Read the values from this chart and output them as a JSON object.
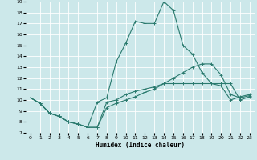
{
  "xlabel": "Humidex (Indice chaleur)",
  "xlim": [
    -0.5,
    23.5
  ],
  "ylim": [
    7,
    19
  ],
  "xticks": [
    0,
    1,
    2,
    3,
    4,
    5,
    6,
    7,
    8,
    9,
    10,
    11,
    12,
    13,
    14,
    15,
    16,
    17,
    18,
    19,
    20,
    21,
    22,
    23
  ],
  "yticks": [
    7,
    8,
    9,
    10,
    11,
    12,
    13,
    14,
    15,
    16,
    17,
    18,
    19
  ],
  "bg_color": "#cce8ea",
  "grid_color": "#ffffff",
  "line_color": "#2a7a6e",
  "curve1_x": [
    0,
    1,
    2,
    3,
    4,
    5,
    6,
    7,
    8,
    9,
    10,
    11,
    12,
    13,
    14,
    15,
    16,
    17,
    18,
    19,
    20,
    21,
    22,
    23
  ],
  "curve1_y": [
    10.2,
    9.7,
    8.8,
    8.5,
    8.0,
    7.8,
    7.5,
    7.5,
    9.8,
    10.0,
    10.5,
    10.8,
    11.0,
    11.2,
    11.5,
    11.5,
    11.5,
    11.5,
    11.5,
    11.5,
    11.3,
    10.0,
    10.3,
    10.5
  ],
  "curve2_x": [
    0,
    1,
    2,
    3,
    4,
    5,
    6,
    7,
    8,
    9,
    10,
    11,
    12,
    13,
    14,
    15,
    16,
    17,
    18,
    19,
    20,
    21,
    22,
    23
  ],
  "curve2_y": [
    10.2,
    9.7,
    8.8,
    8.5,
    8.0,
    7.8,
    7.5,
    9.8,
    10.2,
    13.5,
    15.2,
    17.2,
    17.0,
    17.0,
    19.0,
    18.2,
    15.0,
    14.2,
    12.5,
    11.5,
    11.5,
    11.5,
    10.0,
    10.3
  ],
  "curve3_x": [
    0,
    1,
    2,
    3,
    4,
    5,
    6,
    7,
    8,
    9,
    10,
    11,
    12,
    13,
    14,
    15,
    16,
    17,
    18,
    19,
    20,
    21,
    22,
    23
  ],
  "curve3_y": [
    10.2,
    9.7,
    8.8,
    8.5,
    8.0,
    7.8,
    7.5,
    7.5,
    9.3,
    9.7,
    10.0,
    10.3,
    10.7,
    11.0,
    11.5,
    12.0,
    12.5,
    13.0,
    13.3,
    13.3,
    12.3,
    10.5,
    10.2,
    10.4
  ]
}
